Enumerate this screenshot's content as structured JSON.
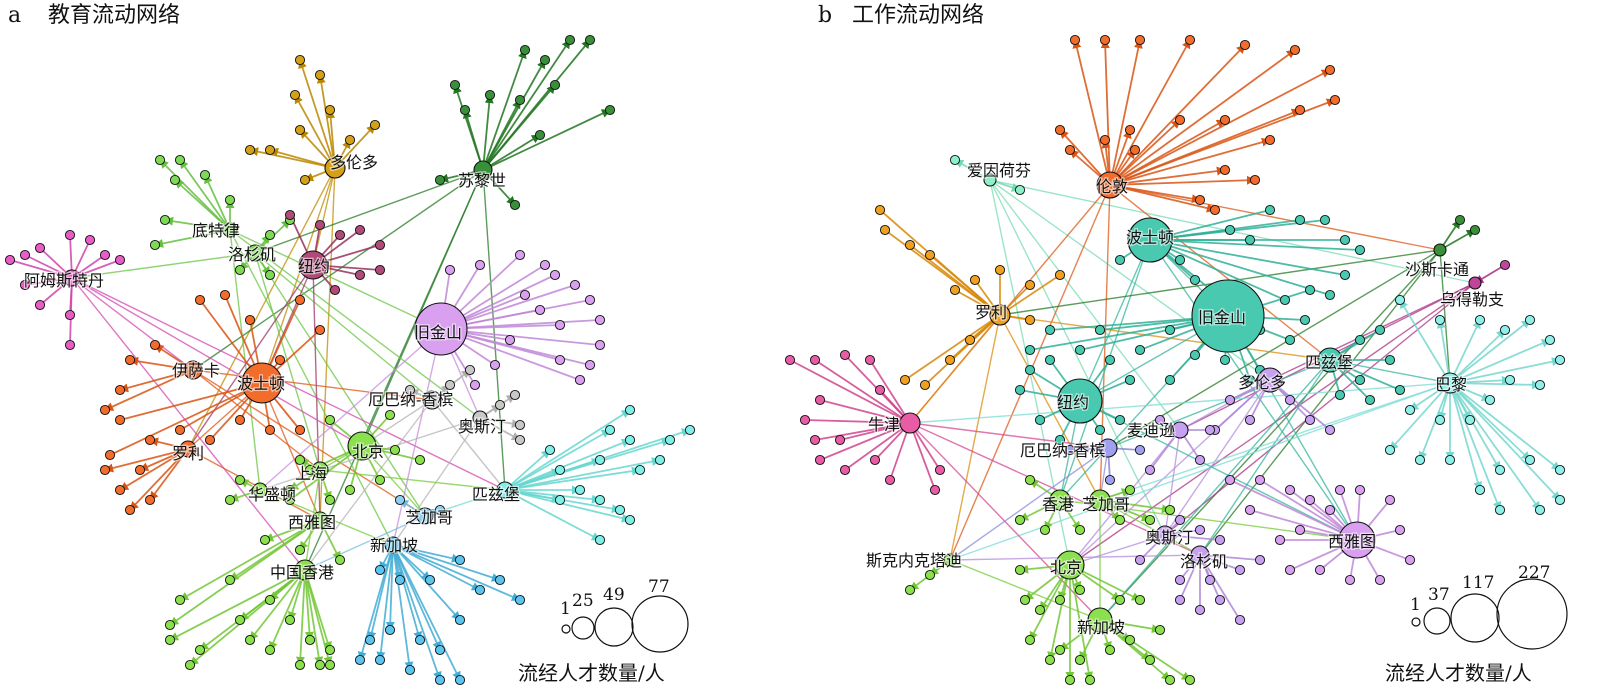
{
  "panels": [
    {
      "letter": "a",
      "title": "教育流动网络",
      "hubs": [
        {
          "name": "多伦多",
          "color": "#d4a017",
          "size": 10
        },
        {
          "name": "苏黎世",
          "color": "#3a8f3a",
          "size": 9
        },
        {
          "name": "底特律",
          "color": "#7ed957",
          "size": 7
        },
        {
          "name": "洛杉矶",
          "color": "#7ed957",
          "size": 8
        },
        {
          "name": "纽约",
          "color": "#b04a78",
          "size": 14
        },
        {
          "name": "阿姆斯特丹",
          "color": "#e85cc5",
          "size": 8
        },
        {
          "name": "旧金山",
          "color": "#d9a0f0",
          "size": 26
        },
        {
          "name": "伊萨卡",
          "color": "#f26c2c",
          "size": 9
        },
        {
          "name": "波士顿",
          "color": "#f26c2c",
          "size": 20
        },
        {
          "name": "厄巴纳-香槟",
          "color": "#c8c8c8",
          "size": 9
        },
        {
          "name": "奥斯汀",
          "color": "#c8c8c8",
          "size": 7
        },
        {
          "name": "北京",
          "color": "#8be04e",
          "size": 14
        },
        {
          "name": "罗利",
          "color": "#f26c2c",
          "size": 8
        },
        {
          "name": "上海",
          "color": "#8be04e",
          "size": 8
        },
        {
          "name": "华盛顿",
          "color": "#8be04e",
          "size": 7
        },
        {
          "name": "匹兹堡",
          "color": "#7ff0e8",
          "size": 8
        },
        {
          "name": "西雅图",
          "color": "#8be04e",
          "size": 8
        },
        {
          "name": "芝加哥",
          "color": "#8fd0f0",
          "size": 8
        },
        {
          "name": "新加坡",
          "color": "#5bc5ee",
          "size": 8
        },
        {
          "name": "中国香港",
          "color": "#8be04e",
          "size": 10
        }
      ],
      "legend_values": [
        "1",
        "25",
        "49",
        "77"
      ],
      "legend_caption": "流经人才数量/人"
    },
    {
      "letter": "b",
      "title": "工作流动网络",
      "hubs": [
        {
          "name": "爱因荷芬",
          "color": "#8ef0c8",
          "size": 6
        },
        {
          "name": "伦敦",
          "color": "#f26c2c",
          "size": 13
        },
        {
          "name": "波士顿",
          "color": "#48c9b0",
          "size": 22
        },
        {
          "name": "沙斯卡通",
          "color": "#3a8f3a",
          "size": 6
        },
        {
          "name": "乌得勒支",
          "color": "#c0459a",
          "size": 6
        },
        {
          "name": "罗利",
          "color": "#f0a020",
          "size": 10
        },
        {
          "name": "旧金山",
          "color": "#48c9b0",
          "size": 36
        },
        {
          "name": "匹兹堡",
          "color": "#48c9b0",
          "size": 12
        },
        {
          "name": "多伦多",
          "color": "#c8a0f0",
          "size": 12
        },
        {
          "name": "巴黎",
          "color": "#8ef0e8",
          "size": 10
        },
        {
          "name": "纽约",
          "color": "#48c9b0",
          "size": 22
        },
        {
          "name": "牛津",
          "color": "#e85ca5",
          "size": 10
        },
        {
          "name": "麦迪逊",
          "color": "#c8a0f0",
          "size": 8
        },
        {
          "name": "厄巴纳-香槟",
          "color": "#a0a0f0",
          "size": 9
        },
        {
          "name": "香港",
          "color": "#8be04e",
          "size": 10
        },
        {
          "name": "芝加哥",
          "color": "#8be04e",
          "size": 10
        },
        {
          "name": "奥斯汀",
          "color": "#c8a0f0",
          "size": 9
        },
        {
          "name": "洛杉矶",
          "color": "#c8a0f0",
          "size": 9
        },
        {
          "name": "西雅图",
          "color": "#d9a0f0",
          "size": 18
        },
        {
          "name": "斯克内克塔迪",
          "color": "#8be04e",
          "size": 6
        },
        {
          "name": "北京",
          "color": "#8be04e",
          "size": 14
        },
        {
          "name": "新加坡",
          "color": "#8be04e",
          "size": 12
        }
      ],
      "legend_values": [
        "1",
        "37",
        "117",
        "227"
      ],
      "legend_caption": "流经人才数量/人"
    }
  ]
}
